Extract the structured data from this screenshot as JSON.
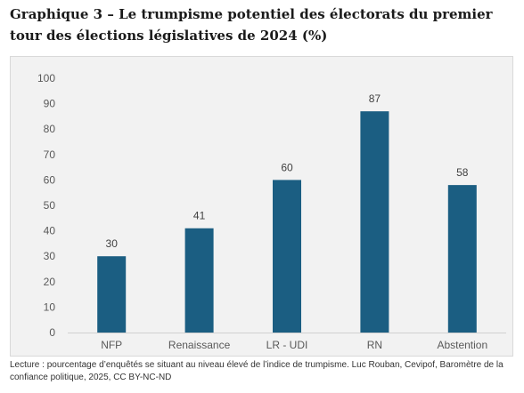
{
  "page": {
    "title": "Graphique 3 – Le trumpisme potentiel des électorats du premier tour des élections législatives de 2024 (%)",
    "caption": "Lecture : pourcentage d’enquêtés se situant au niveau élevé de l’indice de trumpisme. Luc Rouban, Cevipof, Baromètre de la confiance politique, 2025, CC BY-NC-ND"
  },
  "chart_data": {
    "type": "bar",
    "title": "Graphique 3 – Le trumpisme potentiel des électorats du premier tour des élections législatives de 2024 (%)",
    "categories": [
      "NFP",
      "Renaissance",
      "LR - UDI",
      "RN",
      "Abstention"
    ],
    "values": [
      30,
      41,
      60,
      87,
      58
    ],
    "ylim": [
      0,
      100
    ],
    "yticks": [
      0,
      10,
      20,
      30,
      40,
      50,
      60,
      70,
      80,
      90,
      100
    ],
    "grid": false,
    "legend": "none",
    "bar_color": "#1b5e82",
    "background_color": "#f2f2f2"
  }
}
